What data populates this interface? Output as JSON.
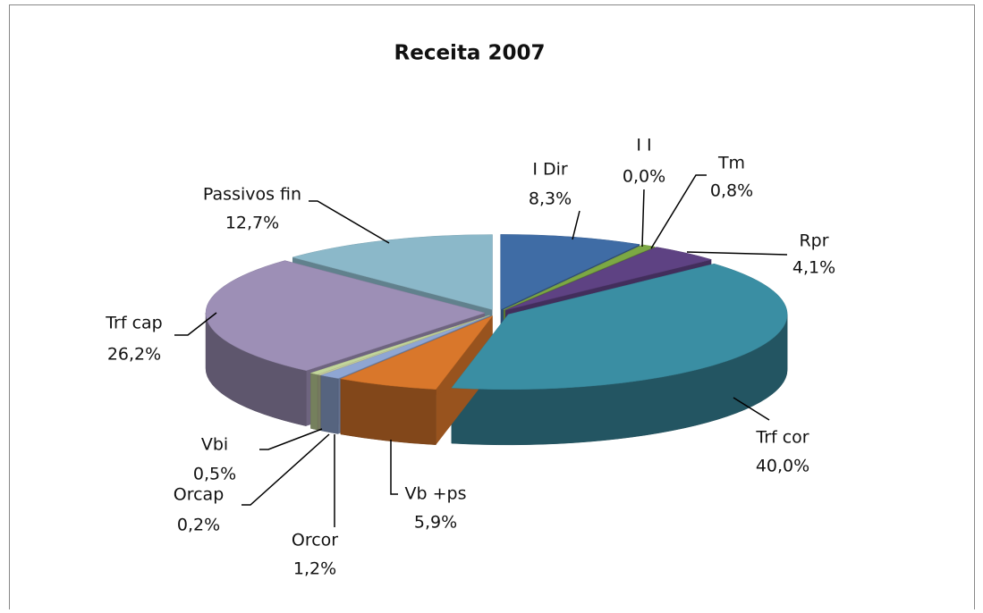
{
  "chart_data": {
    "type": "pie3d",
    "title": "Receita 2007",
    "categories": [
      "I Dir",
      "I I",
      "Tm",
      "Rpr",
      "Trf cor",
      "Vb +ps",
      "Orcor",
      "Orcap",
      "Vbi",
      "Trf cap",
      "Passivos fin"
    ],
    "values": [
      8.3,
      0,
      0.8,
      4.1,
      40,
      5.9,
      1.2,
      0.2,
      0.5,
      26.2,
      12.7
    ],
    "value_labels": [
      "8,3%",
      "0,0%",
      "0,8%",
      "4,1%",
      "40,0%",
      "5,9%",
      "1,2%",
      "0,2%",
      "0,5%",
      "26,2%",
      "12,7%"
    ],
    "colors": [
      "#3f6ca5",
      "#9bbb59",
      "#7ca844",
      "#5e4283",
      "#3a8ea3",
      "#d9772b",
      "#8fa6d3",
      "#c4c9a0",
      "#c3d69b",
      "#9d8fb6",
      "#8bb8c9"
    ]
  }
}
